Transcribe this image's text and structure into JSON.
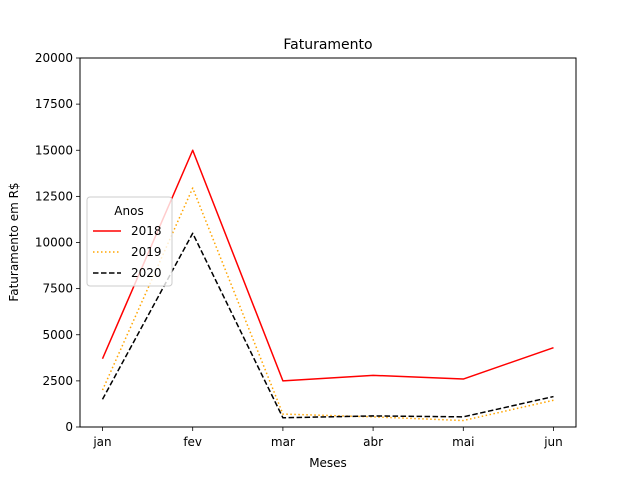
{
  "chart_data": {
    "type": "line",
    "title": "Faturamento",
    "xlabel": "Meses",
    "ylabel": "Faturamento em R$",
    "categories": [
      "jan",
      "fev",
      "mar",
      "abr",
      "mai",
      "jun"
    ],
    "ylim": [
      0,
      20000
    ],
    "yticks": [
      0,
      2500,
      5000,
      7500,
      10000,
      12500,
      15000,
      17500,
      20000
    ],
    "grid": false,
    "legend": {
      "title": "Anos",
      "placement": "center-left"
    },
    "series": [
      {
        "name": "2018",
        "color": "#ff0000",
        "style": "solid",
        "values": [
          3700,
          15000,
          2500,
          2800,
          2600,
          4300
        ]
      },
      {
        "name": "2019",
        "color": "#ffa500",
        "style": "dotted",
        "values": [
          2000,
          12950,
          700,
          550,
          350,
          1450
        ]
      },
      {
        "name": "2020",
        "color": "#000000",
        "style": "dashed",
        "values": [
          1500,
          10500,
          500,
          600,
          550,
          1650
        ]
      }
    ]
  }
}
